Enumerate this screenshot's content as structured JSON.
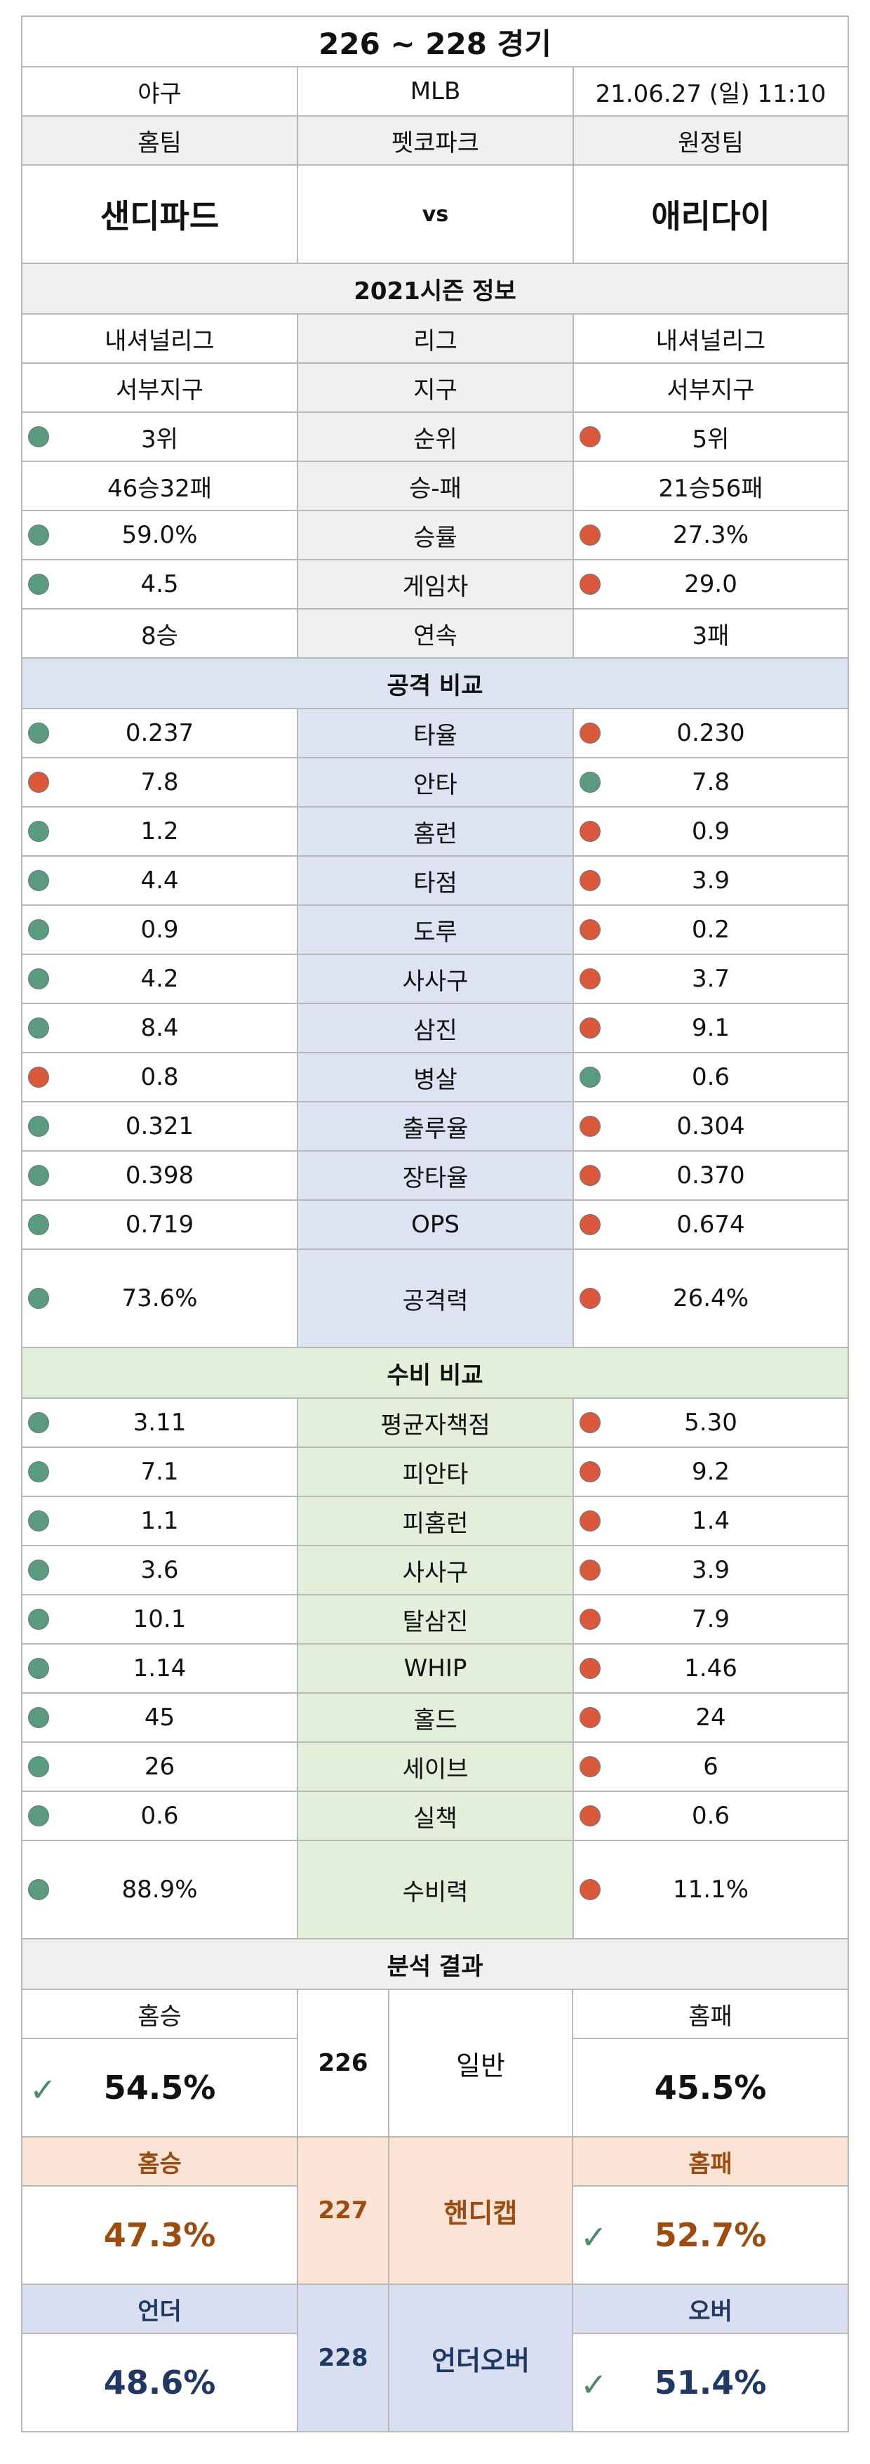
{
  "header": {
    "title": "226 ~ 228 경기"
  },
  "match": {
    "sport": "야구",
    "league": "MLB",
    "datetime": "21.06.27 (일) 11:10"
  },
  "labels": {
    "home": "홈팀",
    "stadium": "펫코파크",
    "away": "원정팀",
    "vs": "vs"
  },
  "teams": {
    "home": "샌디파드",
    "away": "애리다이"
  },
  "season_title": "2021시즌 정보",
  "season": [
    {
      "label": "리그",
      "home": "내셔널리그",
      "away": "내셔널리그",
      "home_dot": "",
      "away_dot": ""
    },
    {
      "label": "지구",
      "home": "서부지구",
      "away": "서부지구",
      "home_dot": "",
      "away_dot": ""
    },
    {
      "label": "순위",
      "home": "3위",
      "away": "5위",
      "home_dot": "green",
      "away_dot": "red"
    },
    {
      "label": "승-패",
      "home": "46승32패",
      "away": "21승56패",
      "home_dot": "",
      "away_dot": ""
    },
    {
      "label": "승률",
      "home": "59.0%",
      "away": "27.3%",
      "home_dot": "green",
      "away_dot": "red"
    },
    {
      "label": "게임차",
      "home": "4.5",
      "away": "29.0",
      "home_dot": "green",
      "away_dot": "red"
    },
    {
      "label": "연속",
      "home": "8승",
      "away": "3패",
      "home_dot": "",
      "away_dot": ""
    }
  ],
  "offense_title": "공격 비교",
  "offense": [
    {
      "label": "타율",
      "home": "0.237",
      "away": "0.230",
      "home_dot": "green",
      "away_dot": "red"
    },
    {
      "label": "안타",
      "home": "7.8",
      "away": "7.8",
      "home_dot": "red",
      "away_dot": "green"
    },
    {
      "label": "홈런",
      "home": "1.2",
      "away": "0.9",
      "home_dot": "green",
      "away_dot": "red"
    },
    {
      "label": "타점",
      "home": "4.4",
      "away": "3.9",
      "home_dot": "green",
      "away_dot": "red"
    },
    {
      "label": "도루",
      "home": "0.9",
      "away": "0.2",
      "home_dot": "green",
      "away_dot": "red"
    },
    {
      "label": "사사구",
      "home": "4.2",
      "away": "3.7",
      "home_dot": "green",
      "away_dot": "red"
    },
    {
      "label": "삼진",
      "home": "8.4",
      "away": "9.1",
      "home_dot": "green",
      "away_dot": "red"
    },
    {
      "label": "병살",
      "home": "0.8",
      "away": "0.6",
      "home_dot": "red",
      "away_dot": "green"
    },
    {
      "label": "출루율",
      "home": "0.321",
      "away": "0.304",
      "home_dot": "green",
      "away_dot": "red"
    },
    {
      "label": "장타율",
      "home": "0.398",
      "away": "0.370",
      "home_dot": "green",
      "away_dot": "red"
    },
    {
      "label": "OPS",
      "home": "0.719",
      "away": "0.674",
      "home_dot": "green",
      "away_dot": "red"
    },
    {
      "label": "공격력",
      "home": "73.6%",
      "away": "26.4%",
      "home_dot": "green",
      "away_dot": "red",
      "tall": true
    }
  ],
  "defense_title": "수비 비교",
  "defense": [
    {
      "label": "평균자책점",
      "home": "3.11",
      "away": "5.30",
      "home_dot": "green",
      "away_dot": "red"
    },
    {
      "label": "피안타",
      "home": "7.1",
      "away": "9.2",
      "home_dot": "green",
      "away_dot": "red"
    },
    {
      "label": "피홈런",
      "home": "1.1",
      "away": "1.4",
      "home_dot": "green",
      "away_dot": "red"
    },
    {
      "label": "사사구",
      "home": "3.6",
      "away": "3.9",
      "home_dot": "green",
      "away_dot": "red"
    },
    {
      "label": "탈삼진",
      "home": "10.1",
      "away": "7.9",
      "home_dot": "green",
      "away_dot": "red"
    },
    {
      "label": "WHIP",
      "home": "1.14",
      "away": "1.46",
      "home_dot": "green",
      "away_dot": "red"
    },
    {
      "label": "홀드",
      "home": "45",
      "away": "24",
      "home_dot": "green",
      "away_dot": "red"
    },
    {
      "label": "세이브",
      "home": "26",
      "away": "6",
      "home_dot": "green",
      "away_dot": "red"
    },
    {
      "label": "실책",
      "home": "0.6",
      "away": "0.6",
      "home_dot": "green",
      "away_dot": "red"
    },
    {
      "label": "수비력",
      "home": "88.9%",
      "away": "11.1%",
      "home_dot": "green",
      "away_dot": "red",
      "tall": true
    }
  ],
  "analysis_title": "분석 결과",
  "analysis": [
    {
      "left_label": "홈승",
      "left_pct": "54.5%",
      "left_check": true,
      "game": "226",
      "type": "일반",
      "right_label": "홈패",
      "right_pct": "45.5%",
      "right_check": false,
      "style": "plain"
    },
    {
      "left_label": "홈승",
      "left_pct": "47.3%",
      "left_check": false,
      "game": "227",
      "type": "핸디캡",
      "right_label": "홈패",
      "right_pct": "52.7%",
      "right_check": true,
      "style": "orange"
    },
    {
      "left_label": "언더",
      "left_pct": "48.6%",
      "left_check": false,
      "game": "228",
      "type": "언더오버",
      "right_label": "오버",
      "right_pct": "51.4%",
      "right_check": true,
      "style": "navy"
    }
  ],
  "icons": {
    "check": "checkmark-icon",
    "dot_green": "#5a9a7e",
    "dot_red": "#d9593a"
  }
}
